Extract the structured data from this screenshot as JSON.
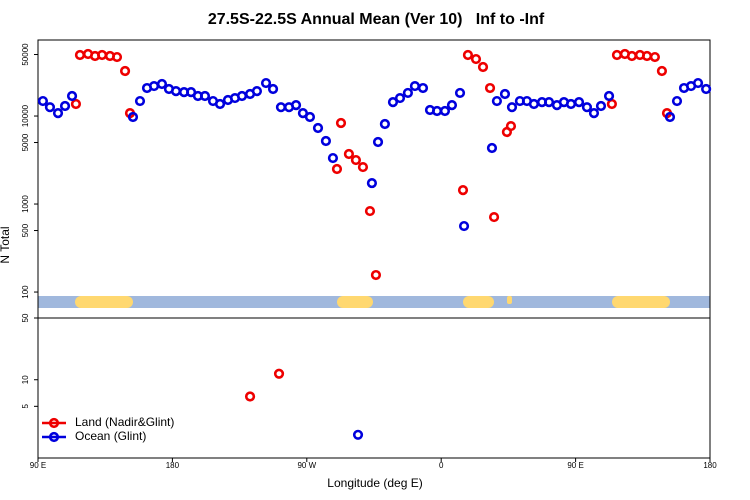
{
  "chart_data": [
    {
      "type": "scatter",
      "title": "27.5S-22.5S Annual Mean (Ver 10)   Inf to -Inf",
      "y_label": "N Total",
      "log_y": true,
      "xlim": [
        90,
        540
      ],
      "ylim": [
        50.7,
        73100
      ],
      "yticks": [
        100,
        500,
        1000,
        5000,
        10000,
        50000
      ],
      "series": [
        {
          "color": "#ee0000",
          "x": [
            115.4,
            118.1,
            123.5,
            128.2,
            132.9,
            138.2,
            142.9,
            148.3,
            151.6,
            290.2,
            292.9,
            298.2,
            302.9,
            307.6,
            312.3,
            316.3,
            374.6,
            377.9,
            383.3,
            388.0,
            392.7,
            395.4,
            404.0,
            406.7,
            474.3,
            477.7,
            483.0,
            487.7,
            493.1,
            497.8,
            503.1,
            507.8,
            511.2
          ],
          "values": [
            13700,
            49400,
            50700,
            48100,
            49400,
            48100,
            46800,
            32500,
            10800,
            2500,
            8330,
            3700,
            3160,
            2630,
            832,
            156,
            1440,
            49400,
            44400,
            36100,
            20800,
            711,
            6580,
            7690,
            13700,
            49400,
            50700,
            48100,
            49400,
            48100,
            46800,
            32500,
            10800
          ]
        },
        {
          "color": "#0000dd",
          "x": [
            93.3,
            98.0,
            103.4,
            108.1,
            112.8,
            153.6,
            158.3,
            163.0,
            167.7,
            173.0,
            177.7,
            182.4,
            187.8,
            192.5,
            197.1,
            201.8,
            207.2,
            211.9,
            217.2,
            221.9,
            226.6,
            232.0,
            236.6,
            242.7,
            247.4,
            252.7,
            258.1,
            262.8,
            267.4,
            272.1,
            277.5,
            282.8,
            287.5,
            313.6,
            317.7,
            322.3,
            327.7,
            332.4,
            337.7,
            342.4,
            347.8,
            352.5,
            357.2,
            362.5,
            367.2,
            372.6,
            375.3,
            394.0,
            397.3,
            402.7,
            407.4,
            412.7,
            417.4,
            422.1,
            427.5,
            432.2,
            437.5,
            442.2,
            446.9,
            452.3,
            457.6,
            462.3,
            467.0,
            472.4,
            513.2,
            517.9,
            522.6,
            527.3,
            532.0,
            537.4
          ],
          "values": [
            14800,
            12600,
            10800,
            13000,
            16900,
            9740,
            14800,
            20800,
            21900,
            23100,
            20300,
            19200,
            18700,
            18700,
            16900,
            16900,
            14800,
            13700,
            15200,
            16000,
            16900,
            17800,
            19200,
            23700,
            20300,
            12600,
            12600,
            13300,
            10800,
            9740,
            7310,
            5200,
            3330,
            1730,
            5070,
            8110,
            14400,
            16000,
            18300,
            21900,
            20800,
            11700,
            11400,
            11400,
            13300,
            18300,
            562,
            4330,
            14800,
            17800,
            12600,
            14800,
            14800,
            13700,
            14400,
            14400,
            13300,
            14400,
            13700,
            14400,
            12600,
            10800,
            13000,
            16900,
            9740,
            14800,
            20800,
            21900,
            23700,
            20300
          ]
        }
      ]
    },
    {
      "type": "scatter",
      "x_label": "Longitude (deg E)",
      "log_y": true,
      "xlim": [
        90,
        540
      ],
      "ylim": [
        1.3,
        50
      ],
      "yticks": [
        5,
        10,
        50
      ],
      "xticks": [
        {
          "value": 90,
          "label": "90 E"
        },
        180,
        {
          "value": 270,
          "label": "90 W"
        },
        {
          "value": 360,
          "label": "0"
        },
        {
          "value": 450,
          "label": "90 E"
        },
        {
          "value": 540,
          "label": "180"
        }
      ],
      "legend": "lower left",
      "series": [
        {
          "name": "Land (Nadir&Glint)",
          "color": "#ee0000",
          "x": [
            232.0,
            251.4
          ],
          "values": [
            6.46,
            11.7
          ]
        },
        {
          "name": "Ocean (Glint)",
          "color": "#0000dd",
          "x": [
            304.3
          ],
          "values": [
            2.38
          ]
        }
      ]
    }
  ]
}
